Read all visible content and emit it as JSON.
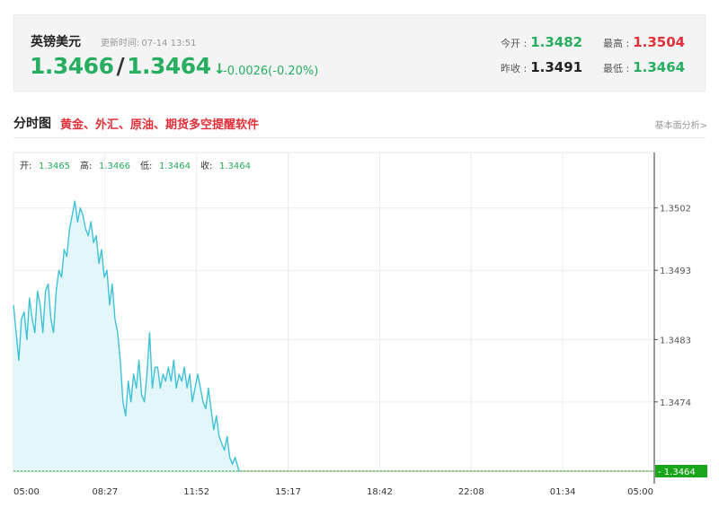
{
  "quote": {
    "name": "英镑美元",
    "time_label": "更新时间:",
    "time": "07-14 13:51",
    "bid": "1.3466",
    "ask": "1.3464",
    "arrow": "↓",
    "change": "-0.0026(-0.20%)",
    "open_label": "今开 :",
    "open": "1.3482",
    "high_label": "最高 :",
    "high": "1.3504",
    "prev_close_label": "昨收 :",
    "prev_close": "1.3491",
    "low_label": "最低 :",
    "low": "1.3464"
  },
  "section": {
    "title": "分时图",
    "promo": "黄金、外汇、原油、期货多空提醒软件",
    "right_link": "基本面分析>"
  },
  "colors": {
    "up": "#e0303a",
    "down": "#27ae60",
    "line": "#3fc1d6",
    "fill": "#e3f6fa",
    "current_tag": "#1aa61a"
  },
  "chart_data": {
    "type": "line",
    "ohlc_bar": {
      "open_label": "开:",
      "open": "1.3465",
      "high_label": "高:",
      "high": "1.3466",
      "low_label": "低:",
      "low": "1.3464",
      "close_label": "收:",
      "close": "1.3464"
    },
    "x_ticks": [
      "05:00",
      "08:27",
      "11:52",
      "15:17",
      "18:42",
      "22:08",
      "01:34",
      "05:00"
    ],
    "y_ticks": [
      1.3502,
      1.3493,
      1.3483,
      1.3474
    ],
    "y_tick_labels": [
      "1.3502",
      "1.3493",
      "1.3483",
      "1.3474"
    ],
    "ylim": [
      1.3464,
      1.351
    ],
    "current_value": 1.3464,
    "current_label": "1.3464",
    "x_hours": [
      0,
      0.1,
      0.2,
      0.3,
      0.4,
      0.5,
      0.6,
      0.7,
      0.8,
      0.9,
      1.0,
      1.1,
      1.2,
      1.3,
      1.4,
      1.5,
      1.6,
      1.7,
      1.8,
      1.9,
      2.0,
      2.1,
      2.2,
      2.3,
      2.4,
      2.5,
      2.6,
      2.7,
      2.8,
      2.9,
      3.0,
      3.1,
      3.2,
      3.3,
      3.4,
      3.5,
      3.6,
      3.7,
      3.8,
      3.9,
      4.0,
      4.1,
      4.2,
      4.3,
      4.4,
      4.5,
      4.6,
      4.7,
      4.8,
      4.9,
      5.0,
      5.1,
      5.2,
      5.3,
      5.4,
      5.5,
      5.6,
      5.7,
      5.8,
      5.9,
      6.0,
      6.1,
      6.2,
      6.3,
      6.4,
      6.5,
      6.6,
      6.7,
      6.8,
      6.9,
      7.0,
      7.1,
      7.2,
      7.3,
      7.4,
      7.5,
      7.6,
      7.7,
      7.8,
      7.9,
      8.0,
      8.1,
      8.2,
      8.3,
      8.45
    ],
    "values": [
      1.3488,
      1.3484,
      1.348,
      1.3486,
      1.3487,
      1.3483,
      1.3489,
      1.3486,
      1.3484,
      1.349,
      1.3488,
      1.3484,
      1.349,
      1.3491,
      1.3486,
      1.3484,
      1.349,
      1.3493,
      1.3492,
      1.3496,
      1.3495,
      1.3499,
      1.3501,
      1.3503,
      1.35,
      1.3502,
      1.3501,
      1.3499,
      1.3498,
      1.35,
      1.3497,
      1.3498,
      1.3494,
      1.3496,
      1.3492,
      1.3493,
      1.3488,
      1.3491,
      1.3486,
      1.3484,
      1.348,
      1.3474,
      1.3472,
      1.3477,
      1.3474,
      1.3478,
      1.3476,
      1.348,
      1.3475,
      1.3474,
      1.3478,
      1.3484,
      1.3476,
      1.3479,
      1.3479,
      1.3476,
      1.3478,
      1.3477,
      1.3479,
      1.3477,
      1.348,
      1.3476,
      1.3478,
      1.3477,
      1.3479,
      1.3476,
      1.3478,
      1.3474,
      1.3476,
      1.3478,
      1.3476,
      1.3474,
      1.3473,
      1.3476,
      1.3473,
      1.347,
      1.3472,
      1.3469,
      1.3468,
      1.3467,
      1.3469,
      1.3466,
      1.3465,
      1.3466,
      1.3464
    ],
    "x_total_hours": 24,
    "grid": true
  }
}
